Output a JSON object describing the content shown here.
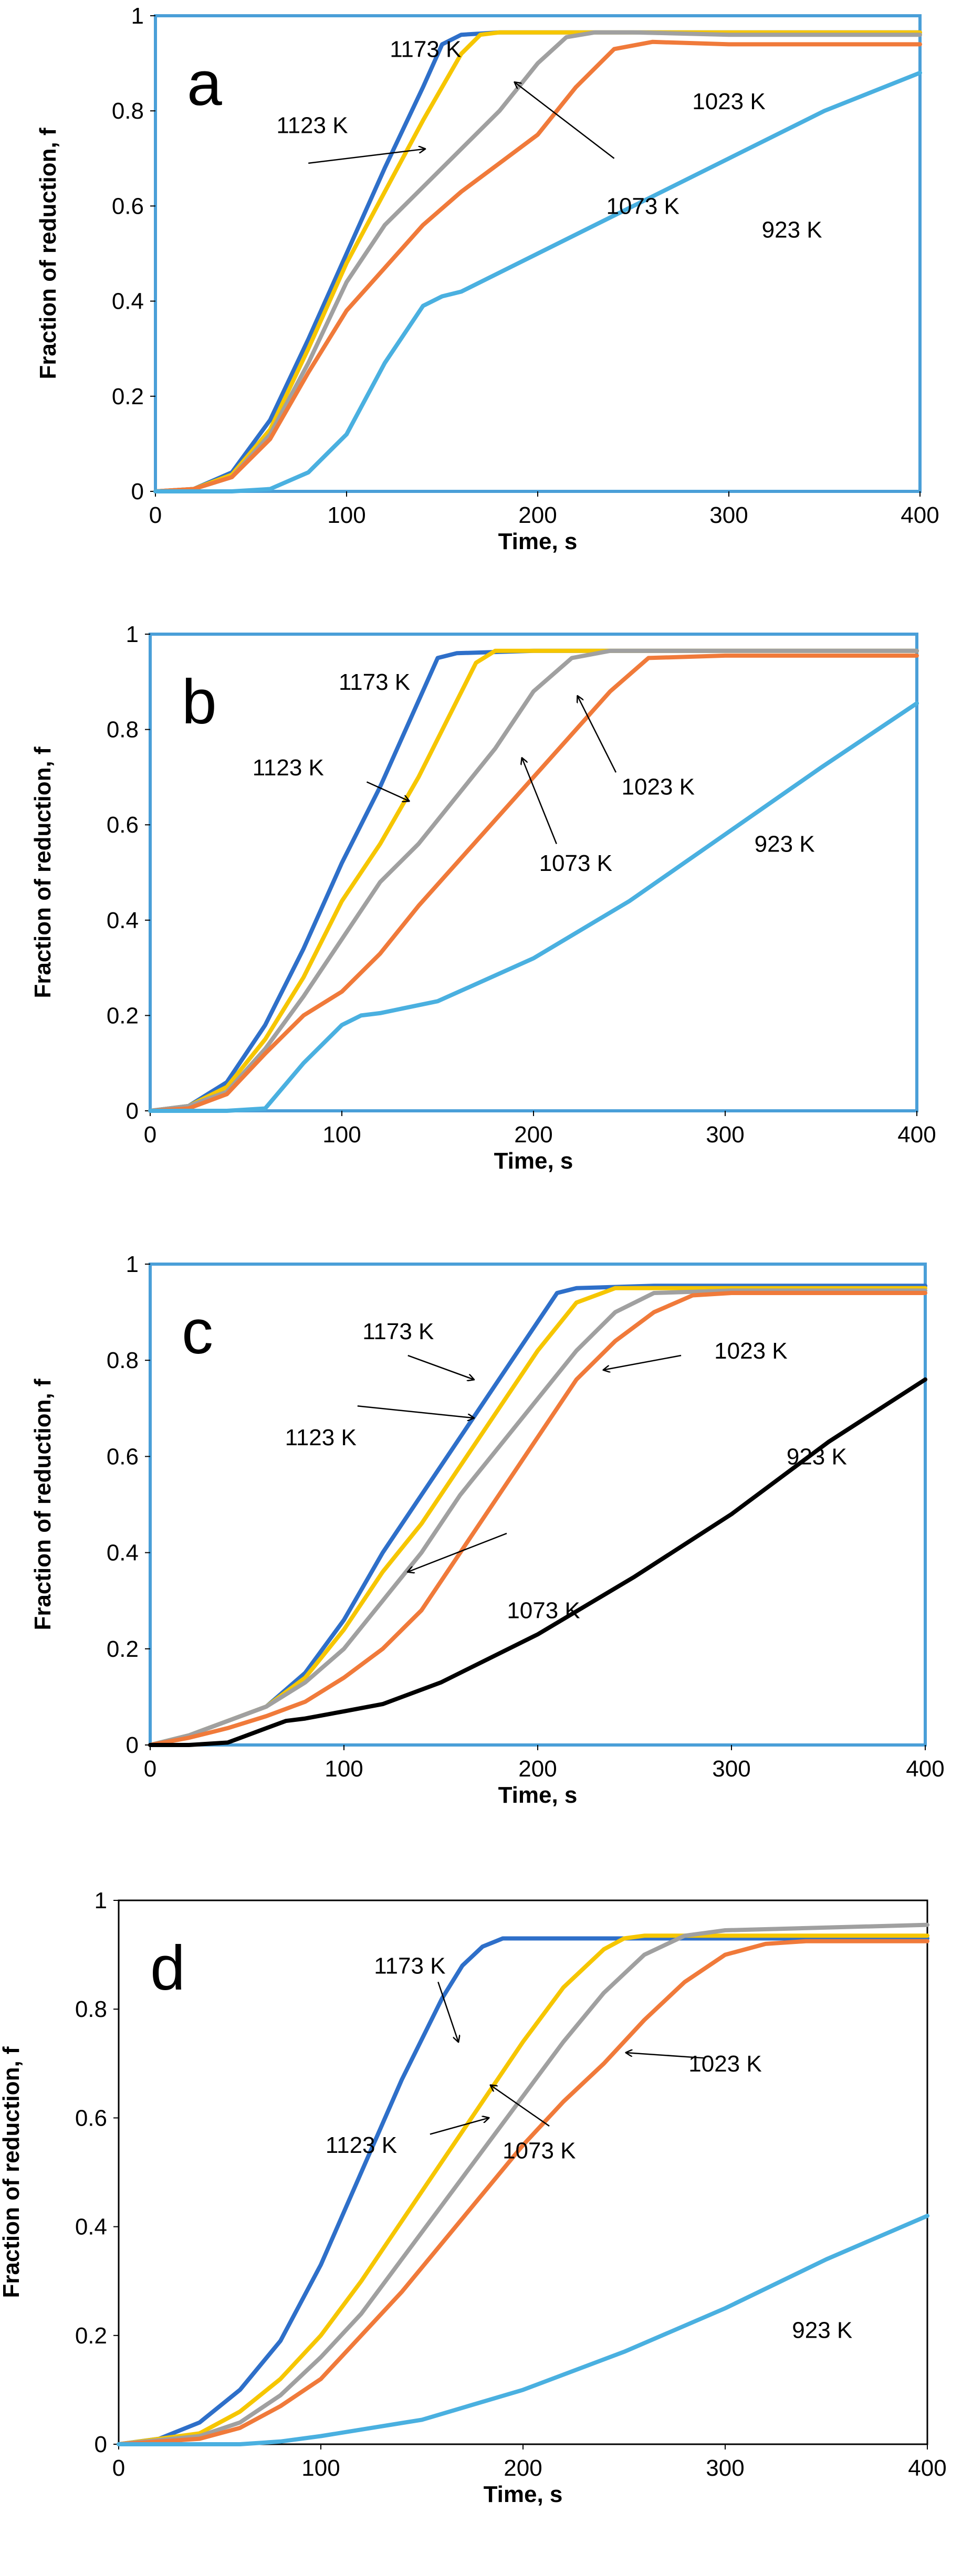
{
  "chart_data": [
    {
      "type": "line",
      "panel_label": "a",
      "xlabel": "Time, s",
      "ylabel": "Fraction of reduction, f",
      "xlim": [
        0,
        400
      ],
      "ylim": [
        0,
        1
      ],
      "xticks": [
        "0",
        "100",
        "200",
        "300",
        "400"
      ],
      "yticks": [
        "0",
        "0.2",
        "0.4",
        "0.6",
        "0.8",
        "1"
      ],
      "frame_color": "#4a9fd8",
      "series": [
        {
          "name": "1173 K",
          "color": "#2e6fc9",
          "x": [
            0,
            20,
            40,
            60,
            80,
            100,
            120,
            140,
            150,
            160,
            180,
            200,
            250,
            300,
            350,
            400
          ],
          "y": [
            0,
            0.005,
            0.04,
            0.15,
            0.32,
            0.5,
            0.68,
            0.85,
            0.94,
            0.96,
            0.965,
            0.965,
            0.965,
            0.965,
            0.965,
            0.965
          ]
        },
        {
          "name": "1123 K",
          "color": "#f6c600",
          "x": [
            0,
            20,
            40,
            60,
            80,
            100,
            120,
            140,
            160,
            170,
            180,
            200,
            250,
            300,
            350,
            400
          ],
          "y": [
            0,
            0.005,
            0.035,
            0.13,
            0.3,
            0.48,
            0.63,
            0.78,
            0.92,
            0.96,
            0.965,
            0.965,
            0.965,
            0.965,
            0.965,
            0.965
          ]
        },
        {
          "name": "1073 K",
          "color": "#a0a0a0",
          "x": [
            0,
            20,
            40,
            60,
            80,
            100,
            120,
            140,
            160,
            180,
            200,
            215,
            230,
            250,
            300,
            400
          ],
          "y": [
            0,
            0.005,
            0.03,
            0.12,
            0.27,
            0.44,
            0.56,
            0.64,
            0.72,
            0.8,
            0.9,
            0.955,
            0.965,
            0.965,
            0.96,
            0.96
          ]
        },
        {
          "name": "1023 K",
          "color": "#f07a3a",
          "x": [
            0,
            20,
            40,
            60,
            80,
            100,
            120,
            140,
            160,
            180,
            200,
            220,
            240,
            260,
            300,
            350,
            400
          ],
          "y": [
            0,
            0.005,
            0.03,
            0.11,
            0.25,
            0.38,
            0.47,
            0.56,
            0.63,
            0.69,
            0.75,
            0.85,
            0.93,
            0.945,
            0.94,
            0.94,
            0.94
          ]
        },
        {
          "name": "923 K",
          "color": "#4ab0e0",
          "x": [
            0,
            40,
            60,
            80,
            100,
            120,
            140,
            150,
            160,
            200,
            250,
            300,
            350,
            400
          ],
          "y": [
            0,
            0,
            0.005,
            0.04,
            0.12,
            0.27,
            0.39,
            0.41,
            0.42,
            0.5,
            0.6,
            0.7,
            0.8,
            0.88
          ]
        }
      ],
      "annotations": [
        {
          "text": "1173 K",
          "series": "1173 K"
        },
        {
          "text": "1123 K",
          "series": "1123 K",
          "arrow": true
        },
        {
          "text": "1073 K",
          "series": "1073 K",
          "arrow": true
        },
        {
          "text": "1023 K",
          "series": "1023 K"
        },
        {
          "text": "923 K",
          "series": "923 K"
        }
      ]
    },
    {
      "type": "line",
      "panel_label": "b",
      "xlabel": "Time, s",
      "ylabel": "Fraction of reduction, f",
      "xlim": [
        0,
        400
      ],
      "ylim": [
        0,
        1
      ],
      "xticks": [
        "0",
        "100",
        "200",
        "300",
        "400"
      ],
      "yticks": [
        "0",
        "0.2",
        "0.4",
        "0.6",
        "0.8",
        "1"
      ],
      "frame_color": "#4a9fd8",
      "series": [
        {
          "name": "1173 K",
          "color": "#2e6fc9",
          "x": [
            0,
            20,
            40,
            60,
            80,
            100,
            120,
            140,
            150,
            160,
            200,
            250,
            300,
            350,
            400
          ],
          "y": [
            0,
            0.01,
            0.06,
            0.18,
            0.34,
            0.52,
            0.68,
            0.86,
            0.95,
            0.96,
            0.965,
            0.965,
            0.965,
            0.965,
            0.965
          ]
        },
        {
          "name": "1123 K",
          "color": "#f6c600",
          "x": [
            0,
            20,
            40,
            60,
            80,
            100,
            120,
            140,
            160,
            170,
            180,
            200,
            300,
            400
          ],
          "y": [
            0,
            0.01,
            0.05,
            0.15,
            0.28,
            0.44,
            0.56,
            0.7,
            0.86,
            0.94,
            0.965,
            0.965,
            0.965,
            0.965
          ]
        },
        {
          "name": "1073 K",
          "color": "#a0a0a0",
          "x": [
            0,
            20,
            40,
            60,
            80,
            100,
            120,
            140,
            160,
            180,
            200,
            220,
            240,
            300,
            400
          ],
          "y": [
            0,
            0.01,
            0.04,
            0.13,
            0.24,
            0.36,
            0.48,
            0.56,
            0.66,
            0.76,
            0.88,
            0.95,
            0.965,
            0.965,
            0.965
          ]
        },
        {
          "name": "1023 K",
          "color": "#f07a3a",
          "x": [
            0,
            20,
            40,
            60,
            80,
            100,
            120,
            140,
            160,
            180,
            200,
            220,
            240,
            260,
            300,
            400
          ],
          "y": [
            0,
            0.005,
            0.035,
            0.12,
            0.2,
            0.25,
            0.33,
            0.43,
            0.52,
            0.61,
            0.7,
            0.79,
            0.88,
            0.95,
            0.955,
            0.955
          ]
        },
        {
          "name": "923 K",
          "color": "#4ab0e0",
          "x": [
            0,
            40,
            60,
            80,
            100,
            110,
            120,
            150,
            200,
            250,
            300,
            350,
            400
          ],
          "y": [
            0,
            0,
            0.005,
            0.1,
            0.18,
            0.2,
            0.205,
            0.23,
            0.32,
            0.44,
            0.58,
            0.72,
            0.855
          ]
        }
      ],
      "annotations": [
        {
          "text": "1173 K",
          "series": "1173 K"
        },
        {
          "text": "1123 K",
          "series": "1123 K",
          "arrow": true
        },
        {
          "text": "1073 K",
          "series": "1073 K",
          "arrow": true
        },
        {
          "text": "1023 K",
          "series": "1023 K",
          "arrow": true
        },
        {
          "text": "923 K",
          "series": "923 K"
        }
      ]
    },
    {
      "type": "line",
      "panel_label": "c",
      "xlabel": "Time, s",
      "ylabel": "Fraction of reduction, f",
      "xlim": [
        0,
        400
      ],
      "ylim": [
        0,
        1
      ],
      "xticks": [
        "0",
        "100",
        "200",
        "300",
        "400"
      ],
      "yticks": [
        "0",
        "0.2",
        "0.4",
        "0.6",
        "0.8",
        "1"
      ],
      "frame_color": "#4a9fd8",
      "series": [
        {
          "name": "1173 K",
          "color": "#2e6fc9",
          "x": [
            0,
            20,
            40,
            60,
            80,
            100,
            120,
            140,
            160,
            180,
            200,
            210,
            220,
            260,
            300,
            400
          ],
          "y": [
            0,
            0.02,
            0.05,
            0.08,
            0.15,
            0.26,
            0.4,
            0.52,
            0.64,
            0.76,
            0.88,
            0.94,
            0.95,
            0.955,
            0.955,
            0.955
          ]
        },
        {
          "name": "1123 K",
          "color": "#f6c600",
          "x": [
            0,
            20,
            40,
            60,
            80,
            100,
            120,
            140,
            160,
            180,
            200,
            220,
            240,
            300,
            400
          ],
          "y": [
            0,
            0.02,
            0.05,
            0.08,
            0.14,
            0.24,
            0.36,
            0.46,
            0.58,
            0.7,
            0.82,
            0.92,
            0.95,
            0.95,
            0.95
          ]
        },
        {
          "name": "1073 K",
          "color": "#a0a0a0",
          "x": [
            0,
            20,
            40,
            60,
            80,
            100,
            120,
            140,
            160,
            180,
            200,
            220,
            240,
            260,
            300,
            400
          ],
          "y": [
            0,
            0.02,
            0.05,
            0.08,
            0.13,
            0.2,
            0.3,
            0.4,
            0.52,
            0.62,
            0.72,
            0.82,
            0.9,
            0.94,
            0.945,
            0.945
          ]
        },
        {
          "name": "1023 K",
          "color": "#f07a3a",
          "x": [
            0,
            20,
            40,
            60,
            80,
            100,
            120,
            140,
            160,
            180,
            200,
            220,
            240,
            260,
            280,
            300,
            400
          ],
          "y": [
            0,
            0.015,
            0.035,
            0.06,
            0.09,
            0.14,
            0.2,
            0.28,
            0.4,
            0.52,
            0.64,
            0.76,
            0.84,
            0.9,
            0.935,
            0.94,
            0.94
          ]
        },
        {
          "name": "923 K",
          "color": "#000000",
          "x": [
            0,
            20,
            40,
            60,
            70,
            80,
            100,
            120,
            150,
            200,
            250,
            300,
            350,
            400
          ],
          "y": [
            0,
            0,
            0.005,
            0.035,
            0.05,
            0.055,
            0.07,
            0.085,
            0.13,
            0.23,
            0.35,
            0.48,
            0.63,
            0.76
          ]
        }
      ],
      "annotations": [
        {
          "text": "1173 K",
          "series": "1173 K",
          "arrow": true
        },
        {
          "text": "1123 K",
          "series": "1123 K",
          "arrow": true
        },
        {
          "text": "1073 K",
          "series": "1073 K",
          "arrow": true
        },
        {
          "text": "1023 K",
          "series": "1023 K",
          "arrow": true
        },
        {
          "text": "923 K",
          "series": "923 K"
        }
      ]
    },
    {
      "type": "line",
      "panel_label": "d",
      "xlabel": "Time, s",
      "ylabel": "Fraction of reduction, f",
      "xlim": [
        0,
        400
      ],
      "ylim": [
        0,
        1
      ],
      "xticks": [
        "0",
        "100",
        "200",
        "300",
        "400"
      ],
      "yticks": [
        "0",
        "0.2",
        "0.4",
        "0.6",
        "0.8",
        "1"
      ],
      "frame_color": "#000000",
      "series": [
        {
          "name": "1173 K",
          "color": "#2e6fc9",
          "x": [
            0,
            20,
            40,
            60,
            80,
            100,
            120,
            140,
            160,
            170,
            180,
            190,
            200,
            250,
            300,
            400
          ],
          "y": [
            0,
            0.01,
            0.04,
            0.1,
            0.19,
            0.33,
            0.5,
            0.67,
            0.82,
            0.88,
            0.915,
            0.93,
            0.93,
            0.93,
            0.93,
            0.93
          ]
        },
        {
          "name": "1123 K",
          "color": "#f6c600",
          "x": [
            0,
            40,
            60,
            80,
            100,
            120,
            140,
            160,
            180,
            200,
            220,
            240,
            250,
            260,
            300,
            400
          ],
          "y": [
            0,
            0.02,
            0.06,
            0.12,
            0.2,
            0.3,
            0.41,
            0.52,
            0.63,
            0.74,
            0.84,
            0.91,
            0.93,
            0.935,
            0.935,
            0.935
          ]
        },
        {
          "name": "1073 K",
          "color": "#a0a0a0",
          "x": [
            0,
            40,
            60,
            80,
            100,
            120,
            140,
            160,
            180,
            200,
            220,
            240,
            260,
            280,
            300,
            400
          ],
          "y": [
            0,
            0.015,
            0.04,
            0.09,
            0.16,
            0.24,
            0.34,
            0.44,
            0.54,
            0.64,
            0.74,
            0.83,
            0.9,
            0.935,
            0.945,
            0.955
          ]
        },
        {
          "name": "1023 K",
          "color": "#f07a3a",
          "x": [
            0,
            40,
            60,
            80,
            100,
            120,
            140,
            160,
            180,
            200,
            220,
            240,
            260,
            280,
            300,
            320,
            340,
            400
          ],
          "y": [
            0,
            0.01,
            0.03,
            0.07,
            0.12,
            0.2,
            0.28,
            0.37,
            0.46,
            0.55,
            0.63,
            0.7,
            0.78,
            0.85,
            0.9,
            0.92,
            0.925,
            0.925
          ]
        },
        {
          "name": "923 K",
          "color": "#4ab0e0",
          "x": [
            0,
            60,
            80,
            100,
            150,
            200,
            250,
            300,
            350,
            400
          ],
          "y": [
            0,
            0,
            0.005,
            0.015,
            0.045,
            0.1,
            0.17,
            0.25,
            0.34,
            0.42
          ]
        }
      ],
      "annotations": [
        {
          "text": "1173 K",
          "series": "1173 K",
          "arrow": true
        },
        {
          "text": "1123 K",
          "series": "1123 K",
          "arrow": true
        },
        {
          "text": "1073 K",
          "series": "1073 K",
          "arrow": true
        },
        {
          "text": "1023 K",
          "series": "1023 K",
          "arrow": true
        },
        {
          "text": "923 K",
          "series": "923 K"
        }
      ]
    }
  ]
}
